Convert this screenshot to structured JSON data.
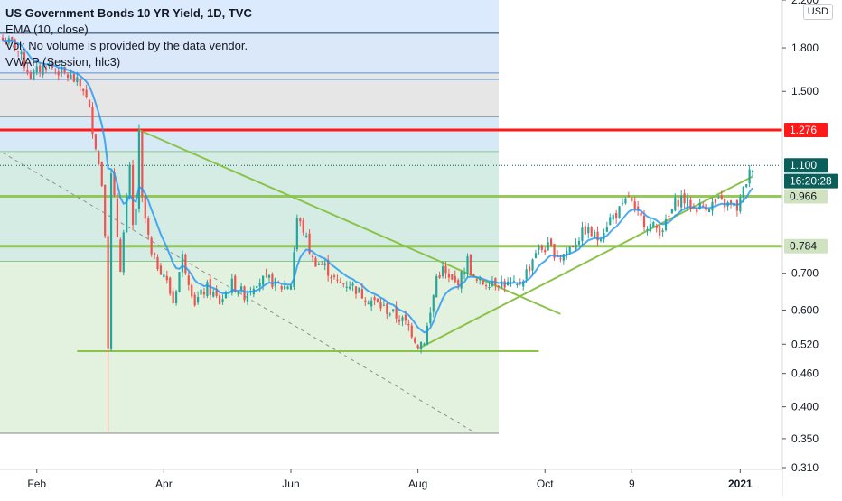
{
  "legend": {
    "title": "US Government Bonds 10 YR Yield, 1D, TVC",
    "line1": "EMA (10, close)",
    "line2": "Vol: No volume is provided by the data vendor.",
    "line3": "VWAP (Session, hlc3)"
  },
  "currency": "USD",
  "price_axis": {
    "ticks": [
      {
        "value": 2.2,
        "label": "2.200"
      },
      {
        "value": 1.8,
        "label": "1.800"
      },
      {
        "value": 1.5,
        "label": "1.500"
      },
      {
        "value": 0.7,
        "label": "0.700"
      },
      {
        "value": 0.6,
        "label": "0.600"
      },
      {
        "value": 0.52,
        "label": "0.520"
      },
      {
        "value": 0.46,
        "label": "0.460"
      },
      {
        "value": 0.4,
        "label": "0.400"
      },
      {
        "value": 0.35,
        "label": "0.350"
      },
      {
        "value": 0.31,
        "label": "0.310"
      }
    ],
    "badges": [
      {
        "value": 1.276,
        "label": "1.276",
        "color": "#ff1a1a"
      },
      {
        "value": 1.1,
        "label": "1.100",
        "color": "#0b5f5b"
      },
      {
        "value": 1.03,
        "label": "16:20:28",
        "color": "#0b5f5b"
      },
      {
        "value": 0.966,
        "label": "0.966",
        "color": "#cfe3c0",
        "text_color": "#131722"
      },
      {
        "value": 0.784,
        "label": "0.784",
        "color": "#cfe3c0",
        "text_color": "#131722"
      }
    ]
  },
  "time_axis": {
    "labels": [
      {
        "label": "Feb",
        "index": 11,
        "bold": false
      },
      {
        "label": "Apr",
        "index": 52,
        "bold": false
      },
      {
        "label": "Jun",
        "index": 93,
        "bold": false
      },
      {
        "label": "Aug",
        "index": 134,
        "bold": false
      },
      {
        "label": "Oct",
        "index": 175,
        "bold": false
      },
      {
        "label": "9",
        "index": 203,
        "bold": false
      },
      {
        "label": "2021",
        "index": 238,
        "bold": true
      }
    ]
  },
  "colors": {
    "up": "#26a69a",
    "down": "#ef5350",
    "ema": "#2196f3",
    "trend": "#8bc34a",
    "resistance": "#ff1a1a",
    "dashed": "#8f8f8f"
  },
  "chart_data": {
    "type": "candlestick",
    "title": "US Government Bonds 10 YR Yield, 1D, TVC",
    "ylim": [
      0.31,
      2.2
    ],
    "y_scale": "log",
    "period": "2020-01 to 2021-01",
    "anchors": [
      [
        0,
        1.86
      ],
      [
        4,
        1.82
      ],
      [
        9,
        1.6
      ],
      [
        14,
        1.68
      ],
      [
        22,
        1.59
      ],
      [
        26,
        1.52
      ],
      [
        28,
        1.38
      ],
      [
        30,
        1.2
      ],
      [
        32,
        1.02
      ],
      [
        33,
        0.84
      ],
      [
        34,
        0.52
      ],
      [
        35,
        1.05
      ],
      [
        36,
        0.95
      ],
      [
        37,
        0.82
      ],
      [
        38,
        0.72
      ],
      [
        40,
        0.95
      ],
      [
        41,
        1.08
      ],
      [
        42,
        0.85
      ],
      [
        43,
        0.92
      ],
      [
        44,
        1.25
      ],
      [
        45,
        0.95
      ],
      [
        48,
        0.75
      ],
      [
        52,
        0.7
      ],
      [
        55,
        0.62
      ],
      [
        58,
        0.75
      ],
      [
        62,
        0.62
      ],
      [
        66,
        0.66
      ],
      [
        70,
        0.62
      ],
      [
        74,
        0.67
      ],
      [
        78,
        0.64
      ],
      [
        82,
        0.68
      ],
      [
        86,
        0.68
      ],
      [
        90,
        0.66
      ],
      [
        93,
        0.67
      ],
      [
        95,
        0.88
      ],
      [
        97,
        0.84
      ],
      [
        100,
        0.74
      ],
      [
        104,
        0.72
      ],
      [
        108,
        0.67
      ],
      [
        112,
        0.67
      ],
      [
        116,
        0.64
      ],
      [
        120,
        0.62
      ],
      [
        124,
        0.6
      ],
      [
        128,
        0.58
      ],
      [
        131,
        0.56
      ],
      [
        134,
        0.52
      ],
      [
        136,
        0.53
      ],
      [
        138,
        0.59
      ],
      [
        140,
        0.69
      ],
      [
        142,
        0.71
      ],
      [
        144,
        0.68
      ],
      [
        146,
        0.67
      ],
      [
        148,
        0.69
      ],
      [
        150,
        0.74
      ],
      [
        152,
        0.68
      ],
      [
        154,
        0.67
      ],
      [
        158,
        0.68
      ],
      [
        162,
        0.67
      ],
      [
        166,
        0.66
      ],
      [
        170,
        0.72
      ],
      [
        172,
        0.77
      ],
      [
        176,
        0.78
      ],
      [
        180,
        0.75
      ],
      [
        184,
        0.79
      ],
      [
        188,
        0.84
      ],
      [
        192,
        0.81
      ],
      [
        196,
        0.88
      ],
      [
        200,
        0.92
      ],
      [
        202,
        0.97
      ],
      [
        204,
        0.9
      ],
      [
        206,
        0.88
      ],
      [
        208,
        0.86
      ],
      [
        212,
        0.84
      ],
      [
        214,
        0.86
      ],
      [
        217,
        0.94
      ],
      [
        219,
        0.96
      ],
      [
        223,
        0.92
      ],
      [
        227,
        0.93
      ],
      [
        231,
        0.94
      ],
      [
        235,
        0.93
      ],
      [
        237,
        0.92
      ],
      [
        238,
        0.95
      ],
      [
        240,
        1.03
      ],
      [
        242,
        1.1
      ]
    ],
    "candle_count": 243,
    "spike_low": [
      34,
      0.36
    ],
    "levels": [
      {
        "name": "resistance",
        "value": 1.276
      },
      {
        "name": "support-upper",
        "value": 0.966
      },
      {
        "name": "support-lower",
        "value": 0.784
      },
      {
        "name": "last",
        "value": 1.1
      }
    ],
    "fib_levels": [
      1.92,
      1.62,
      1.35,
      1.166,
      0.736,
      0.358
    ],
    "lines": [
      {
        "name": "downtrend-line",
        "from": [
          44,
          1.276
        ],
        "to": [
          180,
          0.59
        ]
      },
      {
        "name": "uptrend-line",
        "from": [
          134,
          0.51
        ],
        "to": [
          242,
          1.05
        ]
      },
      {
        "name": "support-segment",
        "from": [
          24,
          0.505
        ],
        "to": [
          173,
          0.505
        ]
      },
      {
        "name": "dashed-projection",
        "from": [
          0,
          1.16
        ],
        "to": [
          152,
          0.36
        ]
      }
    ]
  }
}
